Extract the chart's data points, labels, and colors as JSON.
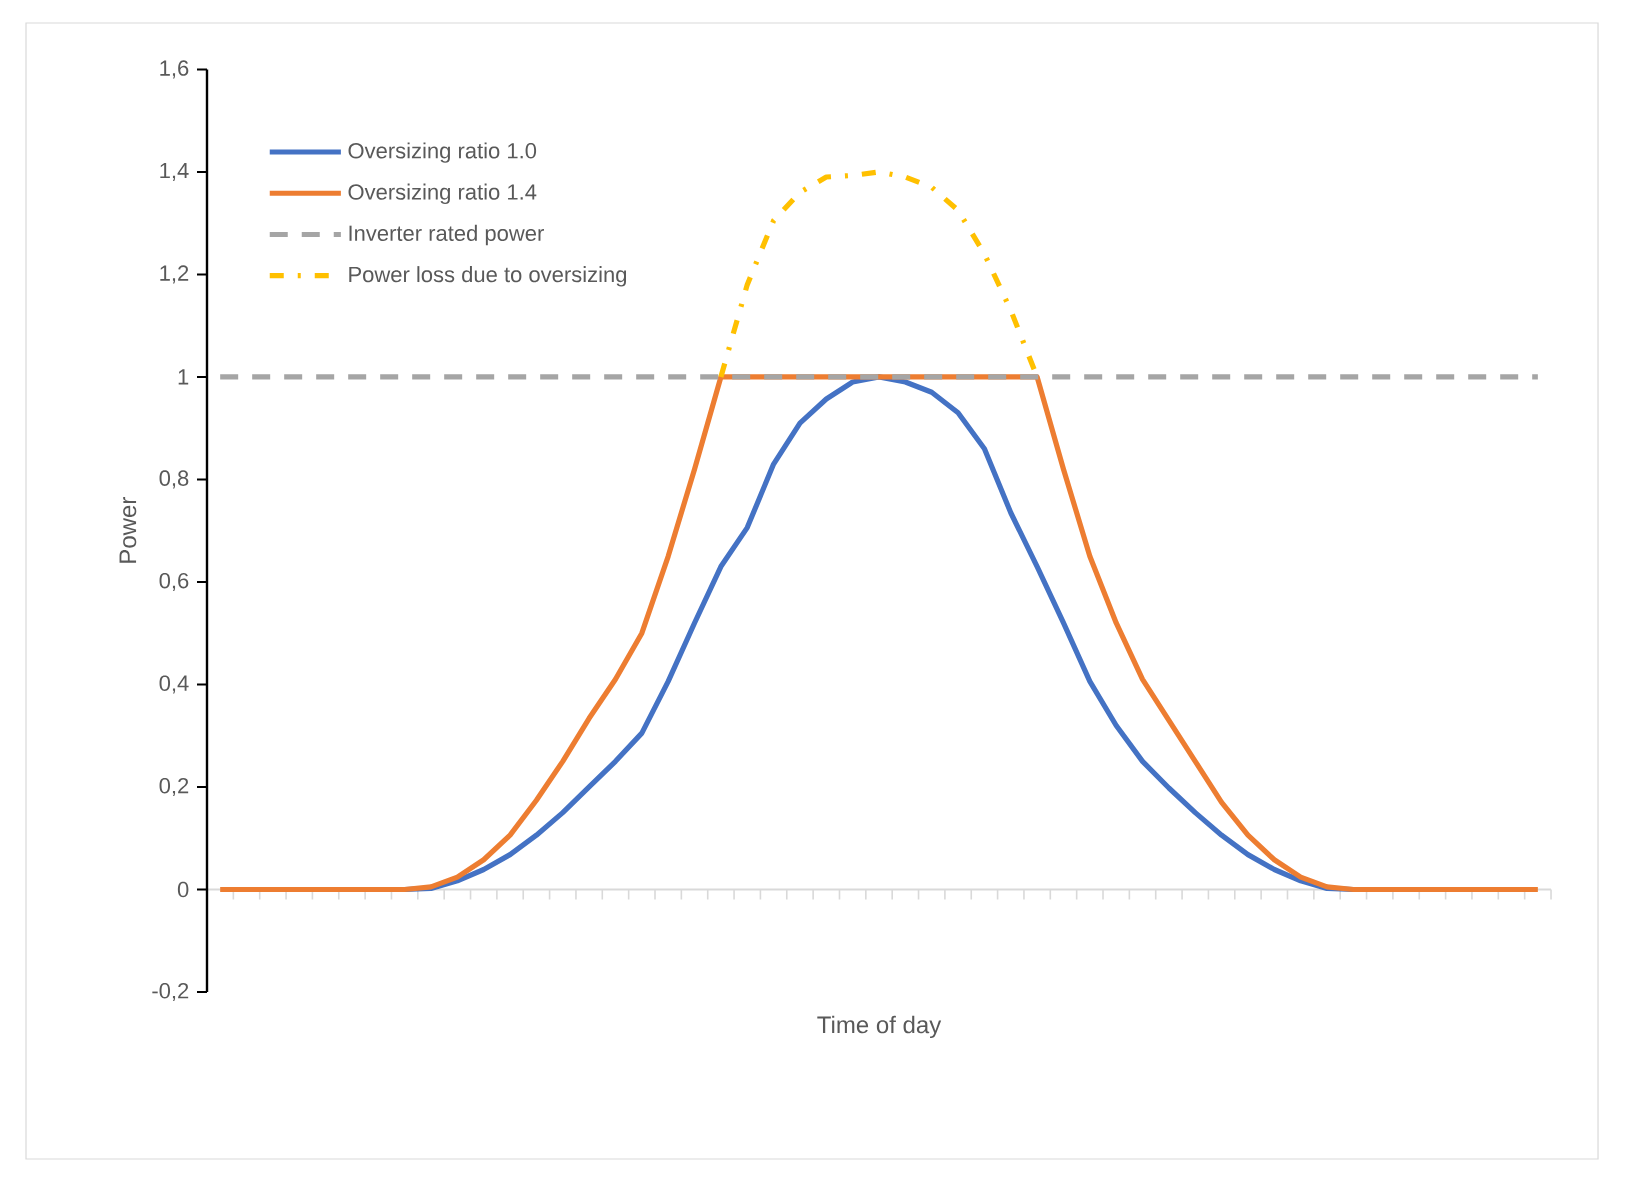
{
  "chart_data": {
    "type": "line",
    "xlabel": "Time of day",
    "ylabel": "Power",
    "categories": [
      null,
      null,
      null,
      null,
      null,
      null,
      null,
      null,
      null,
      null,
      null,
      null,
      null,
      null,
      null,
      null,
      null,
      null,
      null,
      null,
      null,
      null,
      null,
      null,
      null,
      null,
      null,
      null,
      null,
      null,
      null,
      null,
      null,
      null,
      null,
      null,
      null,
      null,
      null,
      null,
      null,
      null,
      null,
      null,
      null,
      null,
      null,
      null,
      null,
      null,
      null
    ],
    "ylim": [
      -0.2,
      1.6
    ],
    "yticks": [
      {
        "value": -0.2,
        "label": "-0,2"
      },
      0,
      {
        "value": 0.2,
        "label": "0,2"
      },
      {
        "value": 0.4,
        "label": "0,4"
      },
      {
        "value": 0.6,
        "label": "0,6"
      },
      {
        "value": 0.8,
        "label": "0,8"
      },
      1,
      {
        "value": 1.2,
        "label": "1,2"
      },
      {
        "value": 1.4,
        "label": "1,4"
      },
      {
        "value": 1.6,
        "label": "1,6"
      }
    ],
    "legend": "top left",
    "marker": "none",
    "series": [
      {
        "name": "Oversizing ratio 1.0",
        "color": "#4472c4",
        "line_style": "solid",
        "values": [
          null,
          null,
          null,
          null,
          null,
          null,
          0,
          0,
          0.002,
          0.017,
          0.039,
          0.068,
          0.106,
          0.15,
          0.2,
          0.25,
          0.305,
          0.406,
          0.52,
          0.63,
          0.706,
          0.83,
          0.91,
          0.957,
          0.99,
          1.0,
          0.99,
          0.97,
          0.93,
          0.86,
          0.735,
          0.63,
          0.52,
          0.406,
          0.32,
          0.25,
          0.198,
          0.15,
          0.106,
          0.068,
          0.039,
          0.017,
          0.002,
          0,
          0,
          null,
          null,
          null,
          null,
          null,
          null
        ]
      },
      {
        "name": "Oversizing ratio 1.4",
        "color": "#ed7d31",
        "line_style": "solid",
        "values": [
          0,
          0,
          0,
          0,
          0,
          0,
          0,
          0,
          0.005,
          0.024,
          0.058,
          0.106,
          0.174,
          0.25,
          0.334,
          0.41,
          0.5,
          0.65,
          0.82,
          1,
          1,
          1,
          1,
          1,
          1,
          1,
          1,
          1,
          1,
          1,
          1,
          1,
          0.82,
          0.65,
          0.52,
          0.41,
          0.33,
          0.25,
          0.17,
          0.106,
          0.058,
          0.024,
          0.005,
          0,
          0,
          0,
          0,
          0,
          0,
          0,
          0
        ]
      },
      {
        "name": "Inverter rated power",
        "color": "#a5a5a5",
        "line_style": "dashed",
        "values": [
          1,
          1,
          1,
          1,
          1,
          1,
          1,
          1,
          1,
          1,
          1,
          1,
          1,
          1,
          1,
          1,
          1,
          1,
          1,
          1,
          1,
          1,
          1,
          1,
          1,
          1,
          1,
          1,
          1,
          1,
          1,
          1,
          1,
          1,
          1,
          1,
          1,
          1,
          1,
          1,
          1,
          1,
          1,
          1,
          1,
          1,
          1,
          1,
          1,
          1,
          1
        ]
      },
      {
        "name": "Power loss due to oversizing",
        "color": "#ffc000",
        "line_style": "dashdot",
        "values": [
          null,
          null,
          null,
          null,
          null,
          null,
          null,
          null,
          null,
          null,
          null,
          null,
          null,
          null,
          null,
          null,
          null,
          null,
          null,
          1.0,
          1.18,
          1.305,
          1.36,
          1.39,
          1.393,
          1.4,
          1.39,
          1.37,
          1.325,
          1.24,
          1.13,
          1.0,
          null,
          null,
          null,
          null,
          null,
          null,
          null,
          null,
          null,
          null,
          null,
          null,
          null,
          null,
          null,
          null,
          null,
          null,
          null
        ]
      }
    ]
  }
}
